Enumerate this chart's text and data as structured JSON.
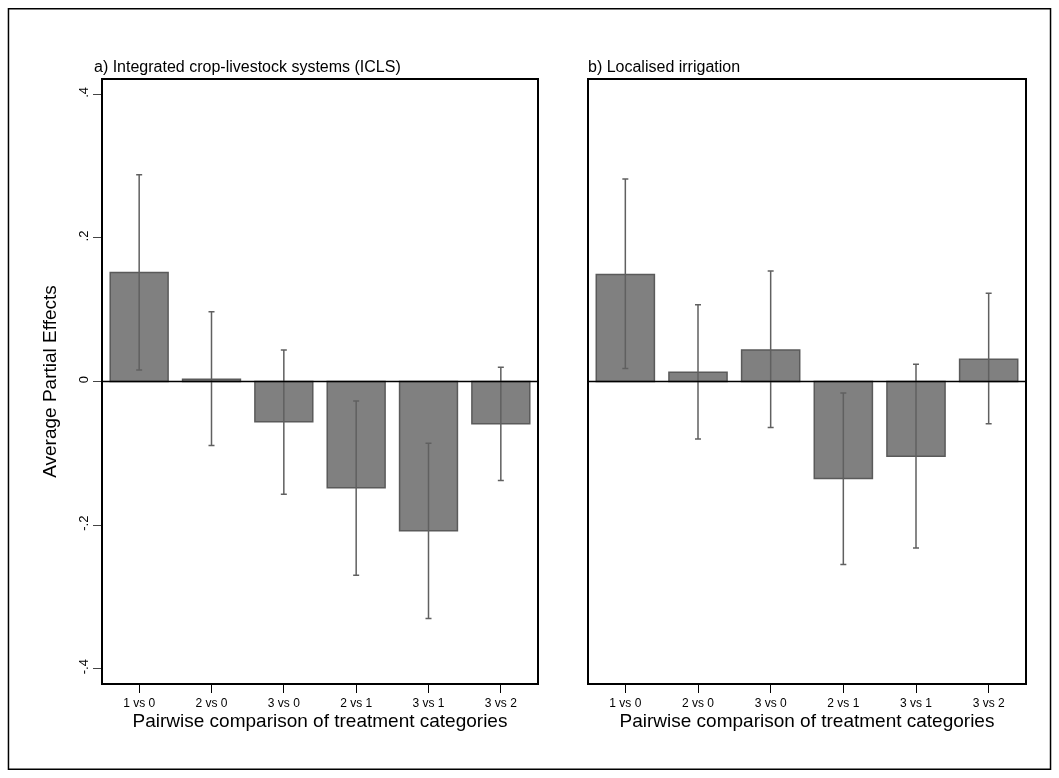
{
  "chart_data": [
    {
      "type": "bar",
      "title": "a) Integrated crop-livestock systems (ICLS)",
      "xlabel": "Pairwise comparison of treatment categories",
      "ylabel": "Average Partial Effects",
      "categories": [
        "1 vs 0",
        "2 vs 0",
        "3 vs 0",
        "2 vs 1",
        "3 vs 1",
        "3 vs 2"
      ],
      "series": [
        {
          "color": "#808080",
          "values": [
            0.152,
            0.003,
            -0.056,
            -0.148,
            -0.208,
            -0.059
          ],
          "errors": [
            [
              0.016,
              0.288
            ],
            [
              -0.089,
              0.097
            ],
            [
              -0.157,
              0.044
            ],
            [
              -0.27,
              -0.027
            ],
            [
              -0.33,
              -0.086
            ],
            [
              -0.138,
              0.02
            ]
          ]
        }
      ],
      "ylim": [
        -0.42,
        0.42
      ],
      "yticks": [
        {
          "value": -0.4,
          "label": "-.4"
        },
        {
          "value": -0.2,
          "label": "-.2"
        },
        0,
        {
          "value": 0.2,
          "label": ".2"
        },
        {
          "value": 0.4,
          "label": ".4"
        }
      ],
      "ref_lines": [
        {
          "axis": "y",
          "value": 0,
          "color": "#000000"
        }
      ]
    },
    {
      "type": "bar",
      "title": "b) Localised irrigation",
      "xlabel": "Pairwise comparison of treatment categories",
      "categories": [
        "1 vs 0",
        "2 vs 0",
        "3 vs 0",
        "2 vs 1",
        "3 vs 1",
        "3 vs 2"
      ],
      "series": [
        {
          "color": "#808080",
          "values": [
            0.149,
            0.013,
            0.044,
            -0.135,
            -0.104,
            0.031
          ],
          "errors": [
            [
              0.018,
              0.282
            ],
            [
              -0.08,
              0.107
            ],
            [
              -0.064,
              0.154
            ],
            [
              -0.255,
              -0.016
            ],
            [
              -0.232,
              0.024
            ],
            [
              -0.059,
              0.123
            ]
          ]
        }
      ],
      "ylim": [
        -0.42,
        0.42
      ],
      "tick_labels": "x",
      "ref_lines": [
        {
          "axis": "y",
          "value": 0,
          "color": "#000000"
        }
      ]
    }
  ]
}
